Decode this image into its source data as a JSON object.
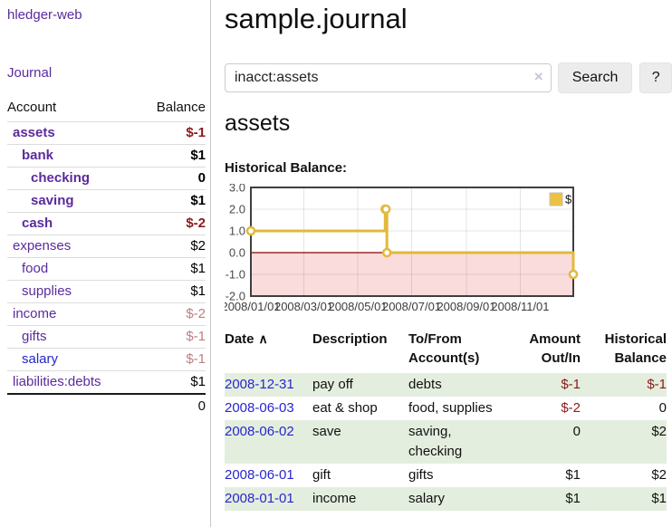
{
  "colors": {
    "link_purple": "#5A2B9D",
    "link_blue": "#2626CC",
    "negative_strong": "#8B1A1A",
    "negative_soft": "#BF7E7E",
    "row_highlight_green": "#E4EEDF",
    "chart_gold": "#EDC240"
  },
  "sidebar": {
    "app_title": "hledger-web",
    "journal_label": "Journal",
    "accounts_table": {
      "headers": {
        "account": "Account",
        "balance": "Balance"
      },
      "rows": [
        {
          "name": "assets",
          "balance": "$-1",
          "indent": 0,
          "bold": true,
          "balance_class": "neg-strong",
          "link_class": ""
        },
        {
          "name": "bank",
          "balance": "$1",
          "indent": 1,
          "bold": true,
          "balance_class": "pos",
          "link_class": ""
        },
        {
          "name": "checking",
          "balance": "0",
          "indent": 2,
          "bold": true,
          "balance_class": "pos",
          "link_class": ""
        },
        {
          "name": "saving",
          "balance": "$1",
          "indent": 2,
          "bold": true,
          "balance_class": "pos",
          "link_class": ""
        },
        {
          "name": "cash",
          "balance": "$-2",
          "indent": 1,
          "bold": true,
          "balance_class": "neg-strong",
          "link_class": ""
        },
        {
          "name": "expenses",
          "balance": "$2",
          "indent": 0,
          "bold": false,
          "balance_class": "pos",
          "link_class": ""
        },
        {
          "name": "food",
          "balance": "$1",
          "indent": 1,
          "bold": false,
          "balance_class": "pos",
          "link_class": ""
        },
        {
          "name": "supplies",
          "balance": "$1",
          "indent": 1,
          "bold": false,
          "balance_class": "pos",
          "link_class": ""
        },
        {
          "name": "income",
          "balance": "$-2",
          "indent": 0,
          "bold": false,
          "balance_class": "neg-soft",
          "link_class": ""
        },
        {
          "name": "gifts",
          "balance": "$-1",
          "indent": 1,
          "bold": false,
          "balance_class": "neg-soft",
          "link_class": ""
        },
        {
          "name": "salary",
          "balance": "$-1",
          "indent": 1,
          "bold": false,
          "balance_class": "neg-soft",
          "link_class": "blue"
        },
        {
          "name": "liabilities:debts",
          "balance": "$1",
          "indent": 0,
          "bold": false,
          "balance_class": "pos",
          "link_class": ""
        }
      ],
      "total": "0"
    }
  },
  "main": {
    "title": "sample.journal",
    "search": {
      "value": "inacct:assets",
      "clear_icon": "×",
      "button_label": "Search",
      "help_label": "?"
    },
    "account_heading": "assets",
    "chart_label": "Historical Balance:"
  },
  "chart_data": {
    "type": "line",
    "step": true,
    "title": "Historical Balance:",
    "legend": [
      {
        "label": "$",
        "color": "#EDC240"
      }
    ],
    "series": [
      {
        "name": "$",
        "color": "#E2B93B",
        "points": [
          [
            "2008-01-01",
            1
          ],
          [
            "2008-06-01",
            2
          ],
          [
            "2008-06-02",
            2
          ],
          [
            "2008-06-03",
            0
          ],
          [
            "2008-12-31",
            -1
          ]
        ]
      }
    ],
    "xlim": [
      "2008-01-01",
      "2008-12-31"
    ],
    "ylim": [
      -2,
      3
    ],
    "xticks": [
      {
        "date": "2008-01-01",
        "label": "2008/01/01"
      },
      {
        "date": "2008-03-01",
        "label": "2008/03/01"
      },
      {
        "date": "2008-05-01",
        "label": "2008/05/01"
      },
      {
        "date": "2008-07-01",
        "label": "2008/07/01"
      },
      {
        "date": "2008-09-01",
        "label": "2008/09/01"
      },
      {
        "date": "2008-11-01",
        "label": "2008/11/01"
      }
    ],
    "yticks": [
      {
        "value": 3,
        "label": "3.0"
      },
      {
        "value": 2,
        "label": "2.0"
      },
      {
        "value": 1,
        "label": "1.0"
      },
      {
        "value": 0,
        "label": "0.0"
      },
      {
        "value": -1,
        "label": "-1.0"
      },
      {
        "value": -2,
        "label": "-2.0"
      }
    ],
    "negative_fill": "#FADCDC",
    "zero_line_color": "#8B0000",
    "grid": true,
    "legend_position": "top-right"
  },
  "register": {
    "headers": {
      "date": {
        "label": "Date",
        "sort_indicator": "∧"
      },
      "description": {
        "label": "Description"
      },
      "accounts": {
        "line1": "To/From",
        "line2": "Account(s)"
      },
      "amount": {
        "line1": "Amount",
        "line2": "Out/In"
      },
      "balance": {
        "line1": "Historical",
        "line2": "Balance"
      }
    },
    "rows": [
      {
        "date": "2008-12-31",
        "description": "pay off",
        "accounts": "debts",
        "amount": "$-1",
        "amount_negative": true,
        "balance": "$-1",
        "balance_negative": true,
        "highlighted": true
      },
      {
        "date": "2008-06-03",
        "description": "eat & shop",
        "accounts": "food, supplies",
        "amount": "$-2",
        "amount_negative": true,
        "balance": "0",
        "balance_negative": false,
        "highlighted": false
      },
      {
        "date": "2008-06-02",
        "description": "save",
        "accounts": "saving, checking",
        "amount": "0",
        "amount_negative": false,
        "balance": "$2",
        "balance_negative": false,
        "highlighted": true
      },
      {
        "date": "2008-06-01",
        "description": "gift",
        "accounts": "gifts",
        "amount": "$1",
        "amount_negative": false,
        "balance": "$2",
        "balance_negative": false,
        "highlighted": false
      },
      {
        "date": "2008-01-01",
        "description": "income",
        "accounts": "salary",
        "amount": "$1",
        "amount_negative": false,
        "balance": "$1",
        "balance_negative": false,
        "highlighted": true
      }
    ]
  }
}
